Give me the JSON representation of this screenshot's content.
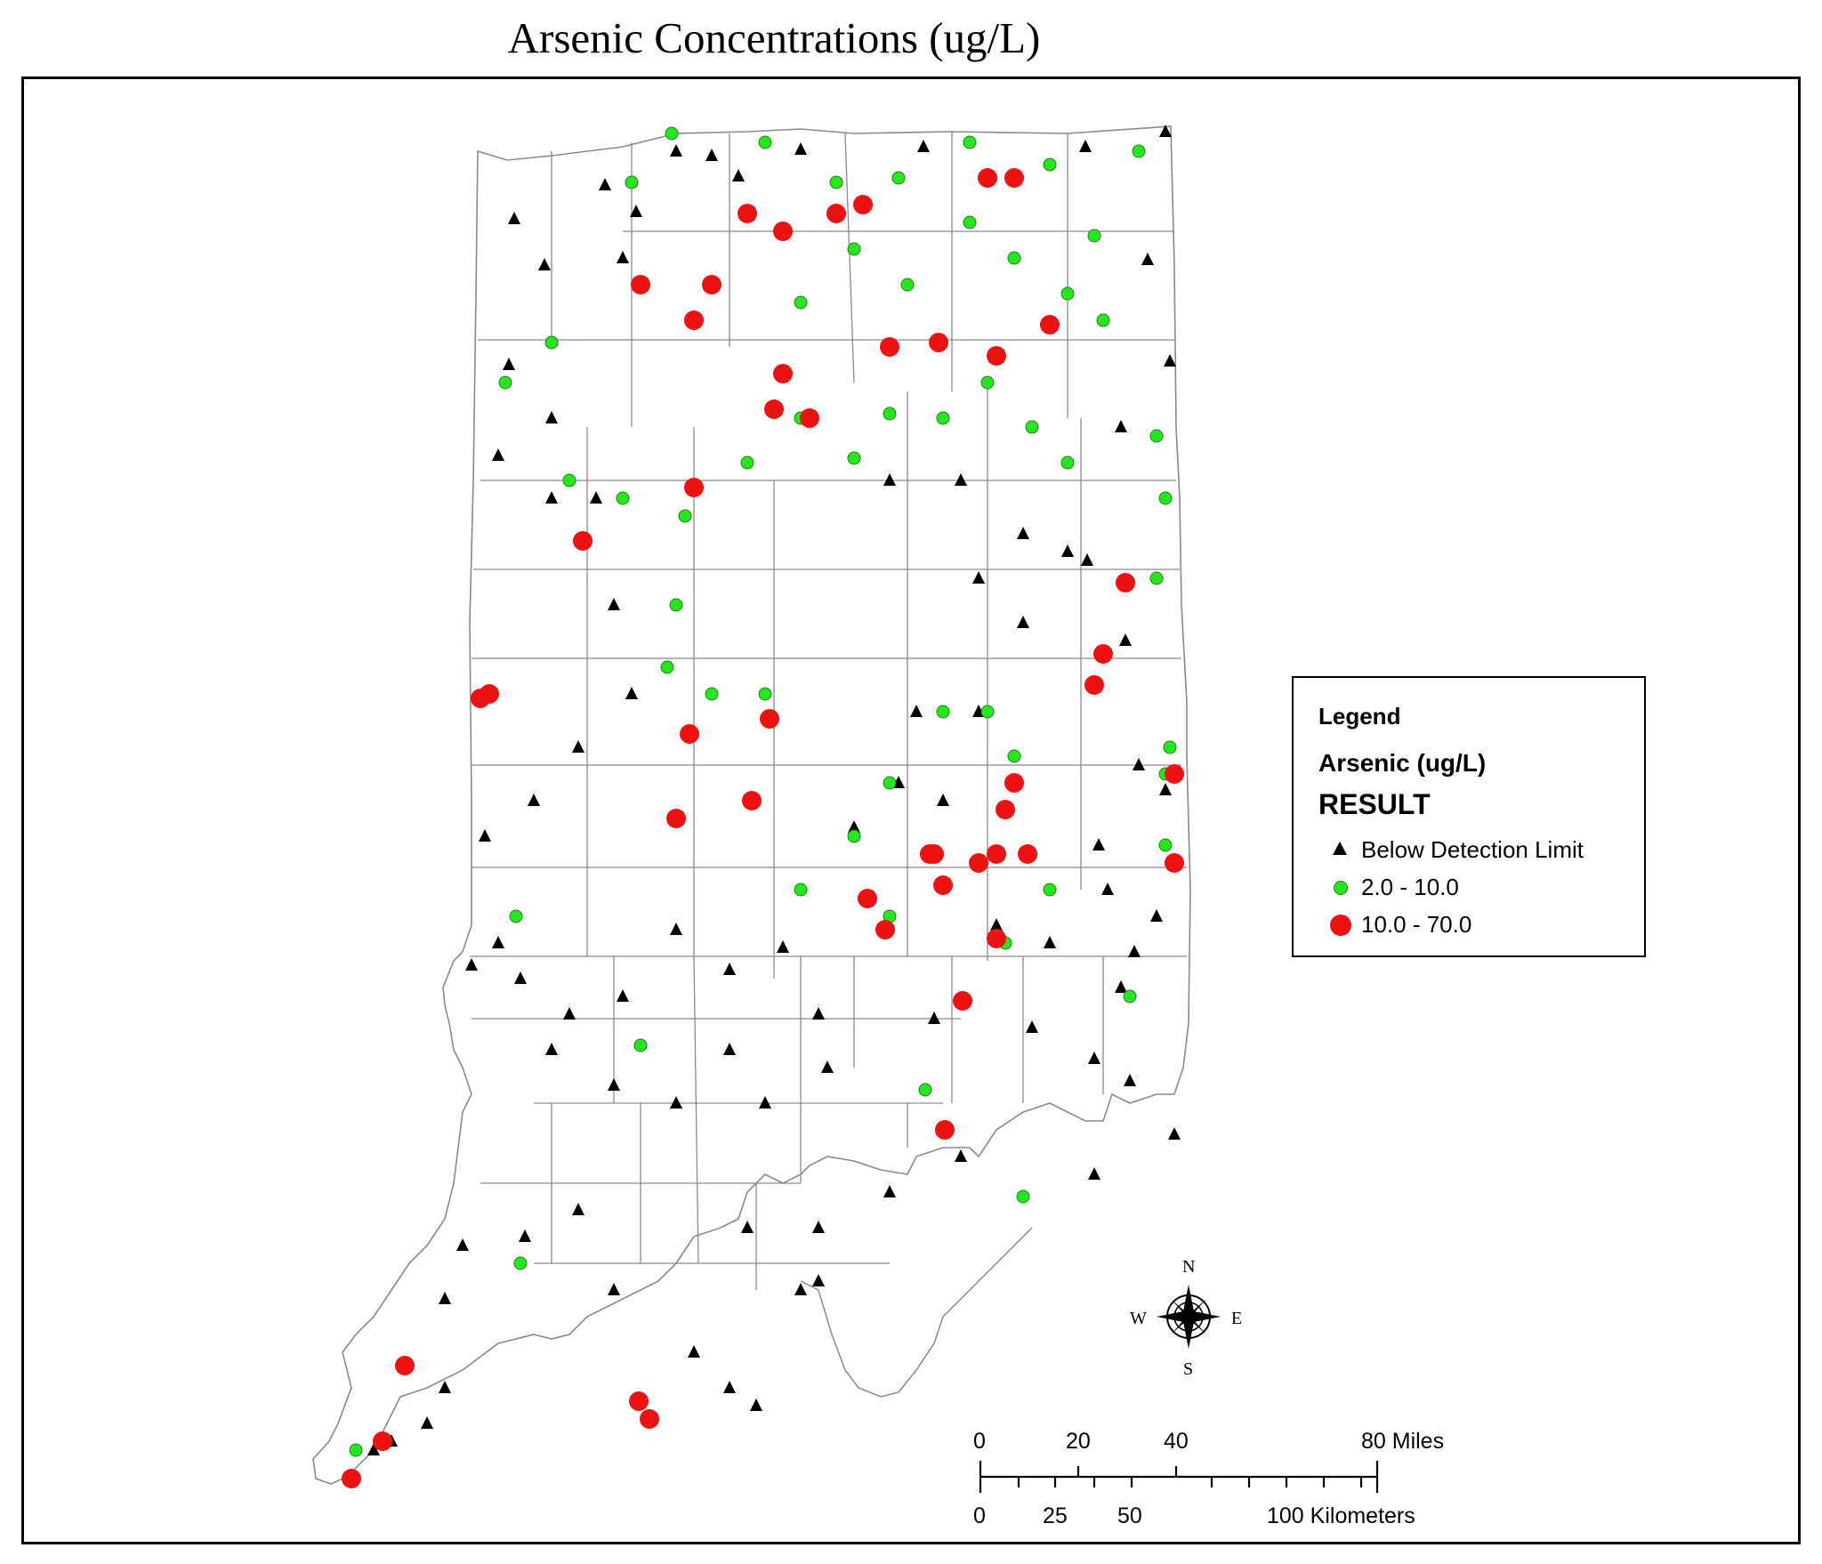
{
  "title": "Arsenic Concentrations (ug/L)",
  "legend": {
    "heading": "Legend",
    "layer": "Arsenic (ug/L)",
    "field": "RESULT",
    "classes": [
      {
        "label": "Below Detection Limit",
        "symbol": "triangle",
        "color": "#000000"
      },
      {
        "label": "2.0 - 10.0",
        "symbol": "circle",
        "color": "#22e81c"
      },
      {
        "label": "10.0 - 70.0",
        "symbol": "circle",
        "color": "#ee1111"
      }
    ]
  },
  "scale_bar": {
    "miles_ticks": [
      "0",
      "20",
      "40",
      "80 Miles"
    ],
    "km_ticks": [
      "0",
      "25",
      "50",
      "100 Kilometers"
    ]
  },
  "compass": {
    "n": "N",
    "s": "S",
    "e": "E",
    "w": "W"
  },
  "colors": {
    "below": "#000000",
    "low": "#22e81c",
    "high": "#ee1111",
    "boundary": "#8a8a8a"
  }
}
